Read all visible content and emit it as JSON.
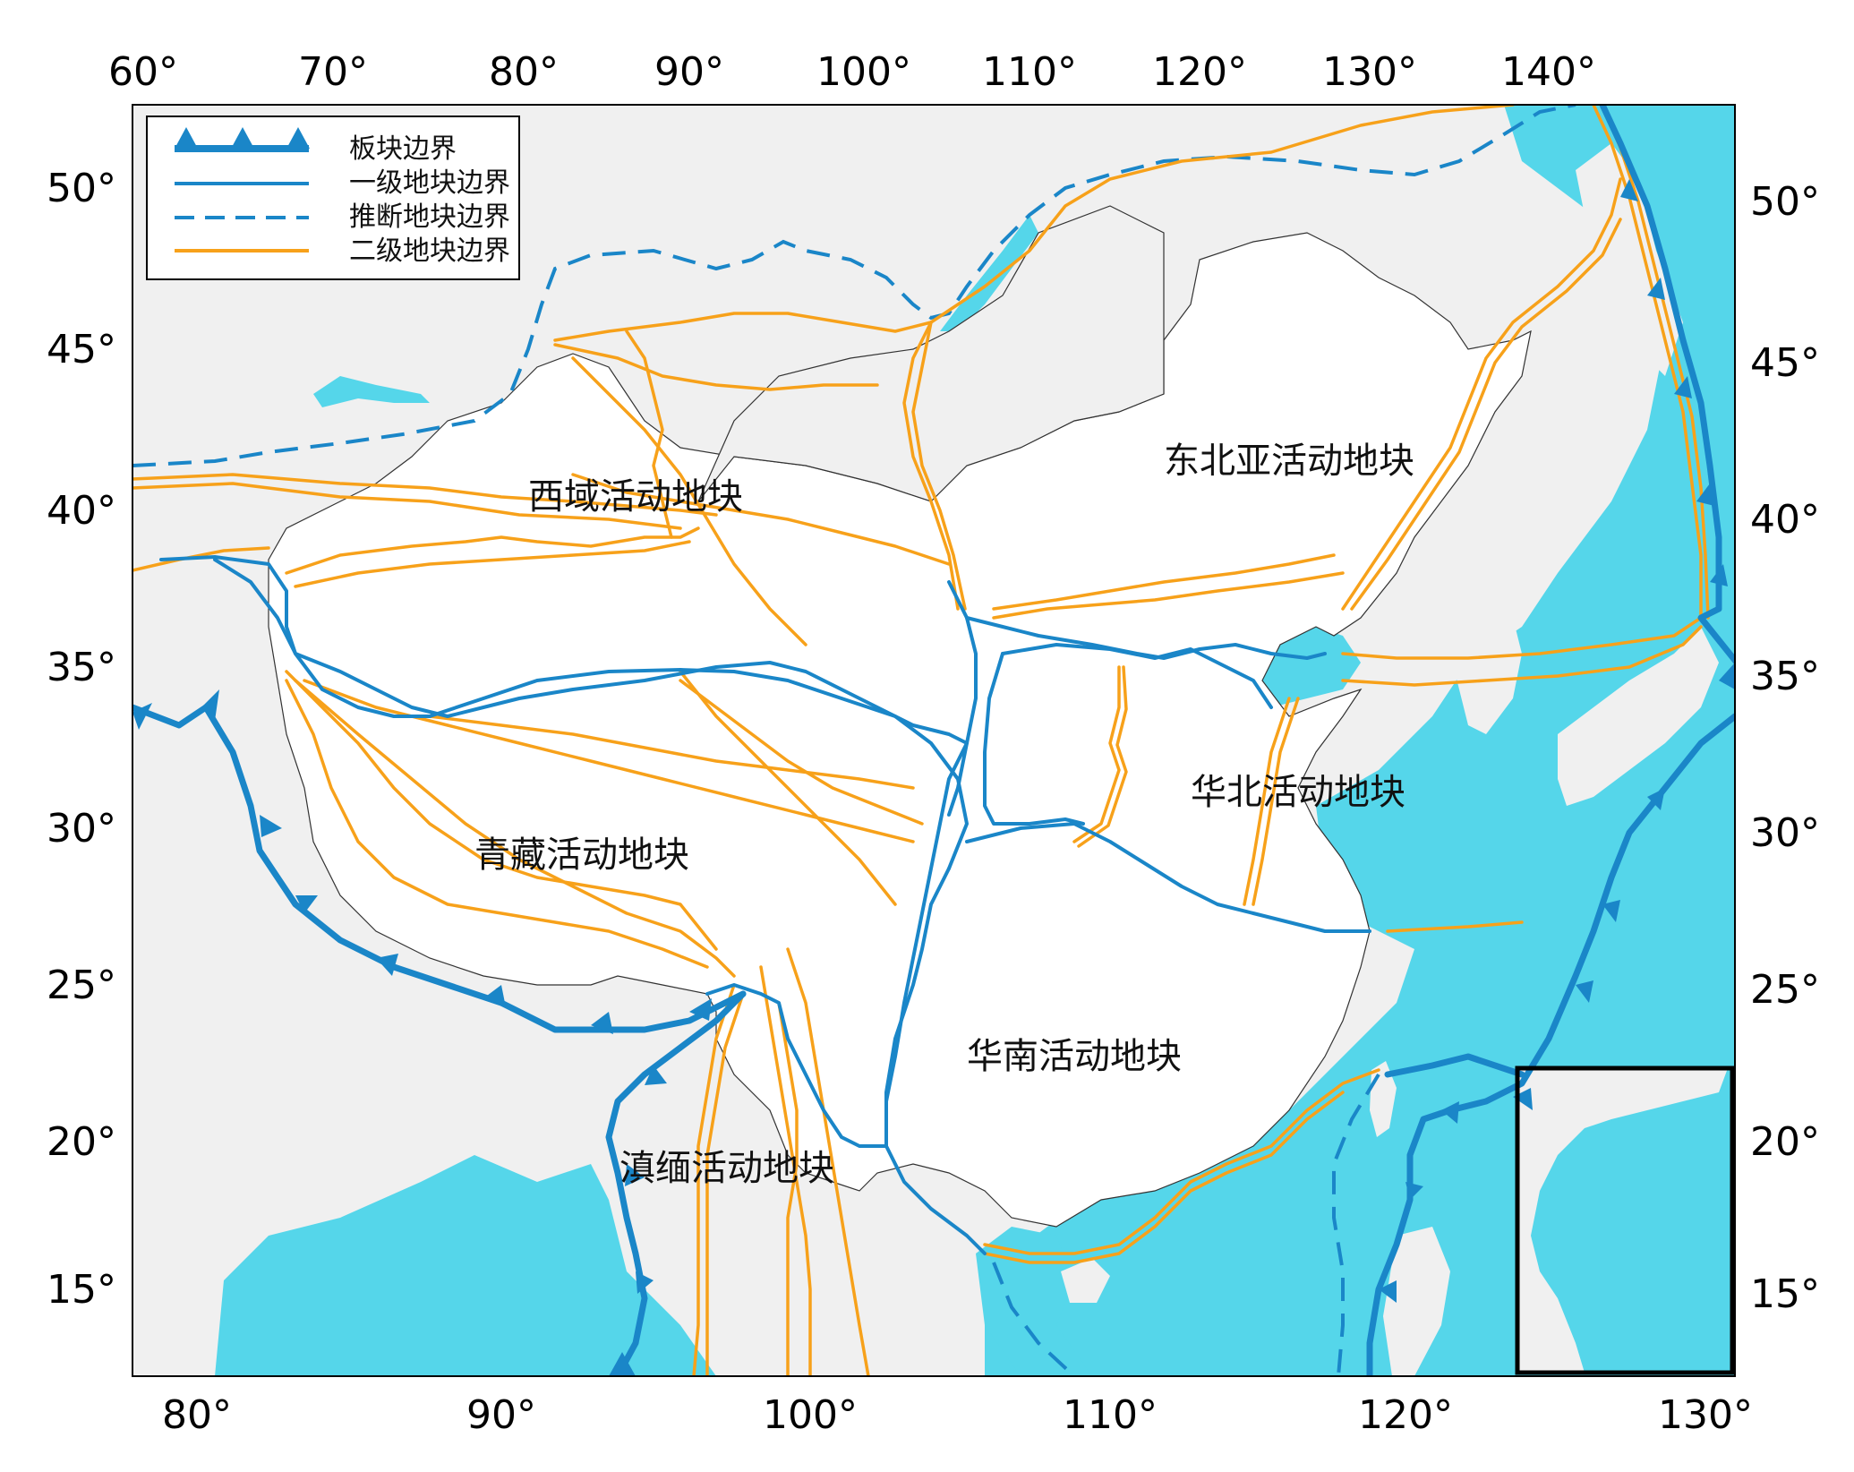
{
  "top_axis_labels": [
    "60°",
    "70°",
    "80°",
    "90°",
    "100°",
    "110°",
    "120°",
    "130°",
    "140°"
  ],
  "bottom_axis_labels": [
    "80°",
    "90°",
    "100°",
    "110°",
    "120°",
    "130°"
  ],
  "left_axis_labels": [
    "50°",
    "45°",
    "40°",
    "35°",
    "30°",
    "25°",
    "20°",
    "15°"
  ],
  "right_axis_labels": [
    "50°",
    "45°",
    "40°",
    "35°",
    "30°",
    "25°",
    "20°",
    "15°"
  ],
  "legend": {
    "plate_boundary": "板块边界",
    "first_order": "一级地块边界",
    "inferred": "推断地块边界",
    "second_order": "二级地块边界"
  },
  "regions": {
    "xiyu": "西域活动地块",
    "dongbeiya": "东北亚活动地块",
    "qingzang": "青藏活动地块",
    "huabei": "华北活动地块",
    "huanan": "华南活动地块",
    "dianmian": "滇缅活动地块"
  },
  "colors": {
    "sea": "#55d6ea",
    "first_order_boundary": "#1a86c8",
    "second_order_boundary": "#f7a11a",
    "land_outside": "#f0f0f0",
    "land_inside": "#ffffff"
  }
}
